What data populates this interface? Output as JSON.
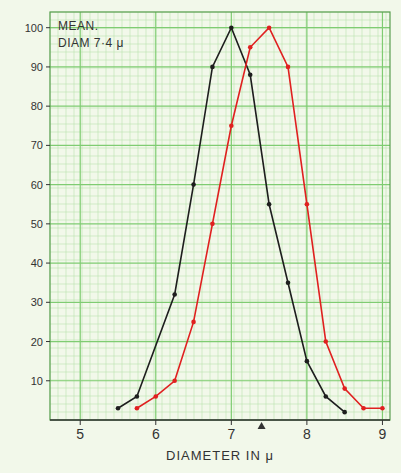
{
  "chart_data": {
    "type": "line",
    "annotation": [
      "MEAN.",
      "DIAM 7·4 μ"
    ],
    "mean": 7.4,
    "x_label": "DIAMETER IN μ",
    "xlim": [
      4.6,
      9.1
    ],
    "xticks": [
      5,
      6,
      7,
      8,
      9
    ],
    "ylim": [
      0,
      104
    ],
    "yticks": [
      10,
      20,
      30,
      40,
      50,
      60,
      70,
      80,
      90,
      100
    ],
    "grid": true,
    "series": [
      {
        "color": "#1e1e1e",
        "marker": "circle",
        "line_style": "solid",
        "x": [
          5.5,
          5.75,
          6.25,
          6.5,
          6.75,
          7.0,
          7.25,
          7.5,
          7.75,
          8.0,
          8.25,
          8.5
        ],
        "values": [
          3,
          6,
          32,
          60,
          90,
          100,
          88,
          55,
          35,
          15,
          6,
          2
        ]
      },
      {
        "color": "#e02020",
        "marker": "circle",
        "line_style": "solid",
        "x": [
          5.75,
          6.0,
          6.25,
          6.5,
          6.75,
          7.0,
          7.25,
          7.5,
          7.75,
          8.0,
          8.25,
          8.5,
          8.75,
          9.0
        ],
        "values": [
          3,
          6,
          10,
          25,
          50,
          75,
          95,
          100,
          90,
          55,
          20,
          8,
          3,
          3
        ]
      }
    ]
  }
}
